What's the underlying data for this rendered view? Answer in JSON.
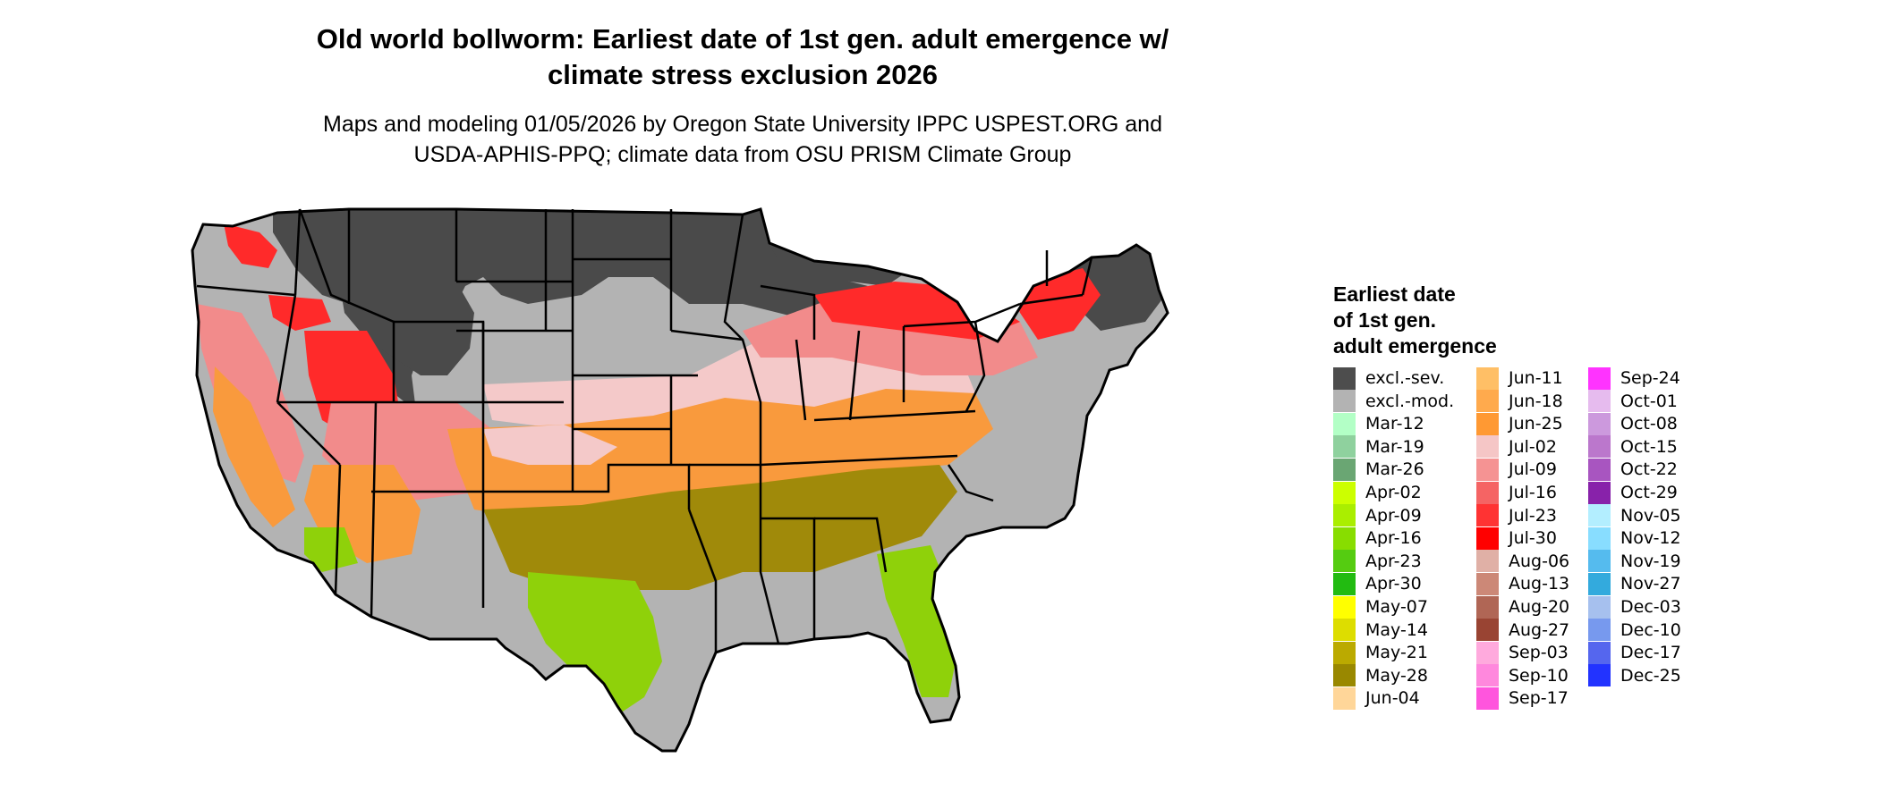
{
  "title": {
    "line1": "Old world bollworm: Earliest date of 1st gen. adult emergence w/",
    "line2": "climate stress exclusion 2026"
  },
  "subtitle": {
    "line1": "Maps and modeling 01/05/2026 by Oregon State University IPPC USPEST.ORG and",
    "line2": "USDA-APHIS-PPQ; climate data from OSU PRISM Climate Group"
  },
  "map": {
    "region": "contiguous-united-states",
    "state-boundary-color": "#000000",
    "palette": {
      "excl_sev": "#4a4a4a",
      "excl_mod": "#b3b3b3",
      "south_spring": "#8fd10a",
      "may": "#a08a0a",
      "june": "#f99a3d",
      "july_light": "#f4c9c9",
      "july": "#f28b8b",
      "july_red": "#ff2a2a"
    }
  },
  "legend": {
    "title": [
      "Earliest date",
      "of 1st gen.",
      "adult emergence"
    ],
    "columns": [
      [
        {
          "label": "excl.-sev.",
          "color": "#4d4d4d"
        },
        {
          "label": "excl.-mod.",
          "color": "#b3b3b3"
        },
        {
          "label": "Mar-12",
          "color": "#b3ffc6"
        },
        {
          "label": "Mar-19",
          "color": "#8fd19e"
        },
        {
          "label": "Mar-26",
          "color": "#6aa673"
        },
        {
          "label": "Apr-02",
          "color": "#ccff00"
        },
        {
          "label": "Apr-09",
          "color": "#aaee00"
        },
        {
          "label": "Apr-16",
          "color": "#88dd00"
        },
        {
          "label": "Apr-23",
          "color": "#55cc11"
        },
        {
          "label": "Apr-30",
          "color": "#22bb11"
        },
        {
          "label": "May-07",
          "color": "#ffff00"
        },
        {
          "label": "May-14",
          "color": "#dddd00"
        },
        {
          "label": "May-21",
          "color": "#bbaa00"
        },
        {
          "label": "May-28",
          "color": "#998800"
        },
        {
          "label": "Jun-04",
          "color": "#ffd699"
        }
      ],
      [
        {
          "label": "Jun-11",
          "color": "#ffbf66"
        },
        {
          "label": "Jun-18",
          "color": "#ffaa4d"
        },
        {
          "label": "Jun-25",
          "color": "#ff9933"
        },
        {
          "label": "Jul-02",
          "color": "#f5c6c6"
        },
        {
          "label": "Jul-09",
          "color": "#f59393"
        },
        {
          "label": "Jul-16",
          "color": "#f56464"
        },
        {
          "label": "Jul-23",
          "color": "#ff3333"
        },
        {
          "label": "Jul-30",
          "color": "#ff0000"
        },
        {
          "label": "Aug-06",
          "color": "#e0b0a6"
        },
        {
          "label": "Aug-13",
          "color": "#cc8877"
        },
        {
          "label": "Aug-20",
          "color": "#b06655"
        },
        {
          "label": "Aug-27",
          "color": "#994433"
        },
        {
          "label": "Sep-03",
          "color": "#ffaadd"
        },
        {
          "label": "Sep-10",
          "color": "#ff88dd"
        },
        {
          "label": "Sep-17",
          "color": "#ff55dd"
        }
      ],
      [
        {
          "label": "Sep-24",
          "color": "#ff33ff"
        },
        {
          "label": "Oct-01",
          "color": "#e6bbee"
        },
        {
          "label": "Oct-08",
          "color": "#cc99dd"
        },
        {
          "label": "Oct-15",
          "color": "#bb77cc"
        },
        {
          "label": "Oct-22",
          "color": "#a855c0"
        },
        {
          "label": "Oct-29",
          "color": "#8822aa"
        },
        {
          "label": "Nov-05",
          "color": "#b3eeff"
        },
        {
          "label": "Nov-12",
          "color": "#88ddff"
        },
        {
          "label": "Nov-19",
          "color": "#55bbee"
        },
        {
          "label": "Nov-27",
          "color": "#33aadd"
        },
        {
          "label": "Dec-03",
          "color": "#a6c0ee"
        },
        {
          "label": "Dec-10",
          "color": "#7799ee"
        },
        {
          "label": "Dec-17",
          "color": "#5566ee"
        },
        {
          "label": "Dec-25",
          "color": "#2233ff"
        }
      ]
    ]
  }
}
